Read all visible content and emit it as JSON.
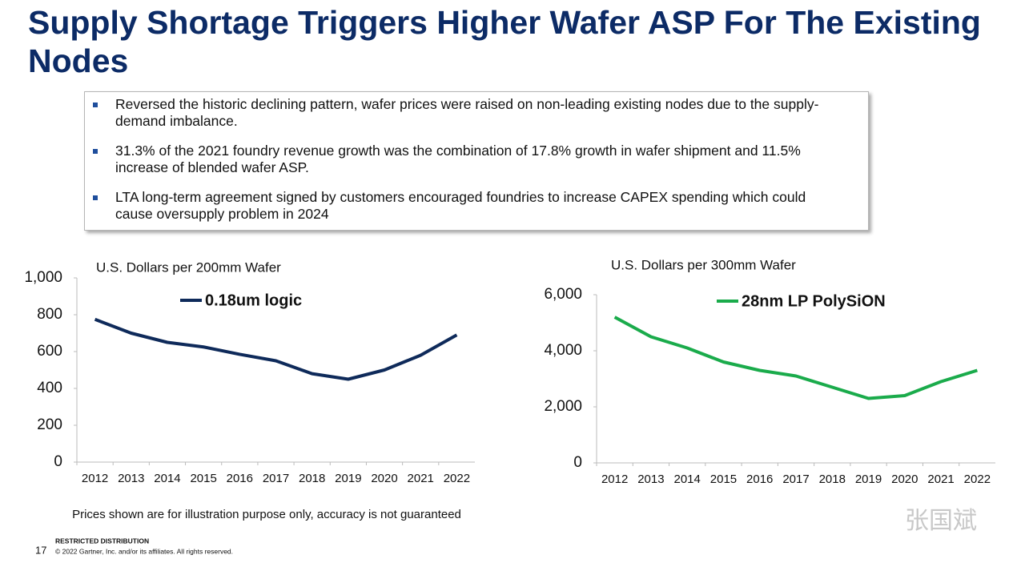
{
  "title": "Supply Shortage Triggers Higher Wafer ASP For The Existing Nodes",
  "bullets": [
    "Reversed the historic declining pattern, wafer prices were raised on non-leading existing nodes due to the supply-demand imbalance.",
    "31.3% of the 2021 foundry revenue growth was the combination of 17.8% growth in wafer shipment and 11.5% increase of  blended wafer ASP.",
    "LTA long-term agreement signed by customers encouraged foundries to increase CAPEX spending which could cause oversupply problem in 2024"
  ],
  "footnote": "Prices shown are for illustration purpose only, accuracy is not guaranteed",
  "footer": {
    "page": "17",
    "restricted": "RESTRICTED DISTRIBUTION",
    "copyright": "© 2022 Gartner, Inc. and/or its affiliates. All rights reserved."
  },
  "watermark": "张国斌",
  "chart_data": [
    {
      "type": "line",
      "ylabel": "U.S. Dollars per 200mm Wafer",
      "categories": [
        "2012",
        "2013",
        "2014",
        "2015",
        "2016",
        "2017",
        "2018",
        "2019",
        "2020",
        "2021",
        "2022"
      ],
      "series": [
        {
          "name": "0.18um logic",
          "color": "#0e2a5a",
          "values": [
            775,
            700,
            650,
            625,
            585,
            550,
            480,
            450,
            500,
            580,
            690
          ]
        }
      ],
      "ylim": [
        0,
        1000
      ],
      "yticks": [
        0,
        200,
        400,
        600,
        800,
        {
          "value": 1000,
          "label": "1,000"
        }
      ],
      "grid": false
    },
    {
      "type": "line",
      "ylabel": "U.S. Dollars per 300mm Wafer",
      "categories": [
        "2012",
        "2013",
        "2014",
        "2015",
        "2016",
        "2017",
        "2018",
        "2019",
        "2020",
        "2021",
        "2022"
      ],
      "series": [
        {
          "name": "28nm LP PolySiON",
          "color": "#1aab4b",
          "values": [
            5200,
            4500,
            4100,
            3600,
            3300,
            3100,
            2700,
            2300,
            2400,
            2900,
            3300
          ]
        }
      ],
      "ylim": [
        0,
        6000
      ],
      "yticks": [
        0,
        {
          "value": 2000,
          "label": "2,000"
        },
        {
          "value": 4000,
          "label": "4,000"
        },
        {
          "value": 6000,
          "label": "6,000"
        }
      ],
      "grid": false
    }
  ]
}
